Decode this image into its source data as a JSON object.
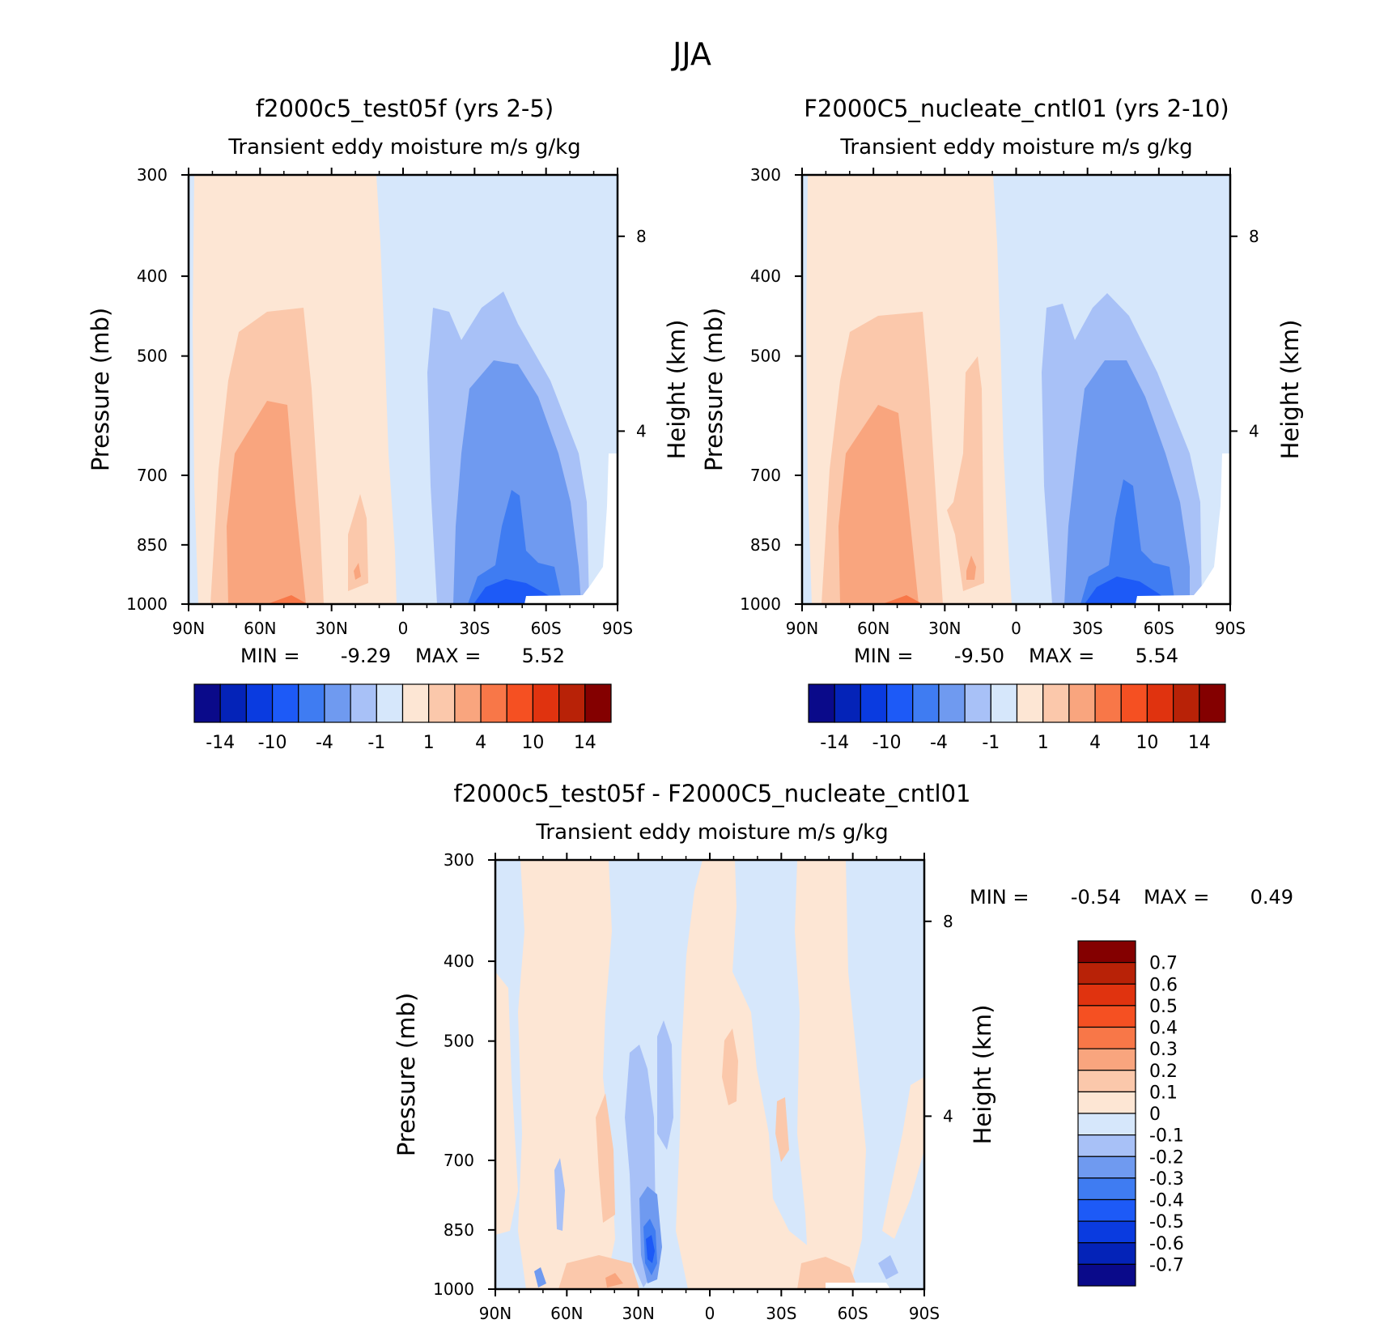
{
  "figure_title": "JJA",
  "colors": {
    "main_scale": [
      "#0a0a8a",
      "#0423b8",
      "#0a3be0",
      "#1d5af7",
      "#3f7cf2",
      "#6f9af0",
      "#a8c1f7",
      "#d6e7fb",
      "#fde6d4",
      "#fbc8ab",
      "#f9a57e",
      "#f87748",
      "#f55022",
      "#e0330f",
      "#b82207",
      "#840000"
    ],
    "diff_scale": [
      "#0a0a8a",
      "#0423b8",
      "#0a3be0",
      "#1d5af7",
      "#3f7cf2",
      "#6f9af0",
      "#a8c1f7",
      "#d6e7fb",
      "#fde6d4",
      "#fbc8ab",
      "#f9a57e",
      "#f87748",
      "#f55022",
      "#e0330f",
      "#b82207",
      "#840000"
    ]
  },
  "chart_data": [
    {
      "type": "heatmap",
      "title": "f2000c5_test05f (yrs 2-5)",
      "subtitle": "Transient eddy moisture m/s g/kg",
      "ylabel": "Pressure (mb)",
      "y2label": "Height (km)",
      "x_ticks": [
        "90N",
        "60N",
        "30N",
        "0",
        "30S",
        "60S",
        "90S"
      ],
      "y_ticks": [
        "300",
        "400",
        "500",
        "700",
        "850",
        "1000"
      ],
      "y2_ticks": [
        "8",
        "4"
      ],
      "stats": {
        "min_label": "MIN =",
        "min": "-9.29",
        "max_label": "MAX =",
        "max": "5.52"
      },
      "legend_labels": [
        "-14",
        "-10",
        "-4",
        "-1",
        "1",
        "4",
        "10",
        "14"
      ]
    },
    {
      "type": "heatmap",
      "title": "F2000C5_nucleate_cntl01 (yrs 2-10)",
      "subtitle": "Transient eddy moisture m/s g/kg",
      "ylabel": "Pressure (mb)",
      "y2label": "Height (km)",
      "x_ticks": [
        "90N",
        "60N",
        "30N",
        "0",
        "30S",
        "60S",
        "90S"
      ],
      "y_ticks": [
        "300",
        "400",
        "500",
        "700",
        "850",
        "1000"
      ],
      "y2_ticks": [
        "8",
        "4"
      ],
      "stats": {
        "min_label": "MIN =",
        "min": "-9.50",
        "max_label": "MAX =",
        "max": "5.54"
      },
      "legend_labels": [
        "-14",
        "-10",
        "-4",
        "-1",
        "1",
        "4",
        "10",
        "14"
      ]
    },
    {
      "type": "heatmap",
      "title": "f2000c5_test05f - F2000C5_nucleate_cntl01",
      "subtitle": "Transient eddy moisture m/s g/kg",
      "ylabel": "Pressure (mb)",
      "y2label": "Height (km)",
      "x_ticks": [
        "90N",
        "60N",
        "30N",
        "0",
        "30S",
        "60S",
        "90S"
      ],
      "y_ticks": [
        "300",
        "400",
        "500",
        "700",
        "850",
        "1000"
      ],
      "y2_ticks": [
        "8",
        "4"
      ],
      "stats": {
        "min_label": "MIN =",
        "min": "-0.54",
        "max_label": "MAX =",
        "max": "0.49"
      },
      "legend_labels": [
        "0.7",
        "0.6",
        "0.5",
        "0.4",
        "0.3",
        "0.2",
        "0.1",
        "0",
        "-0.1",
        "-0.2",
        "-0.3",
        "-0.4",
        "-0.5",
        "-0.6",
        "-0.7"
      ]
    }
  ]
}
